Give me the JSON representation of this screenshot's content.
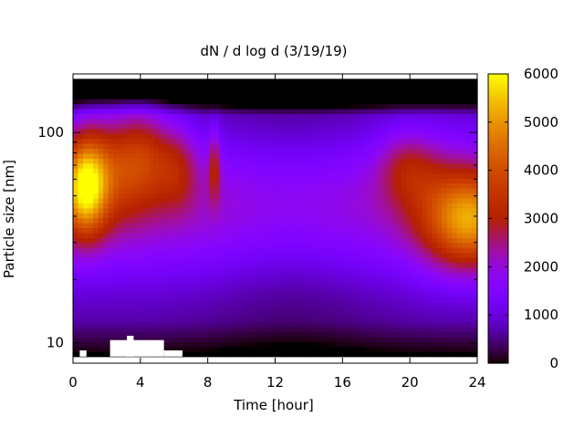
{
  "chart_data": {
    "type": "heatmap",
    "title": "dN / d log d (3/19/19)",
    "xlabel": "Time [hour]",
    "ylabel": "Particle size [nm]",
    "xlim": [
      0,
      24
    ],
    "xticks": [
      0,
      4,
      8,
      12,
      16,
      20,
      24
    ],
    "x_tick_labels": [
      "0",
      "4",
      "8",
      "12",
      "16",
      "20",
      "24"
    ],
    "ylim": [
      8.0,
      190
    ],
    "y_scale": "log",
    "yticks": [
      10,
      100
    ],
    "y_tick_labels": [
      "10",
      "100"
    ],
    "colorbar": {
      "range": [
        0,
        6000
      ],
      "ticks": [
        0,
        1000,
        2000,
        3000,
        4000,
        5000,
        6000
      ],
      "tick_labels": [
        "0",
        "1000",
        "2000",
        "3000",
        "4000",
        "5000",
        "6000"
      ],
      "palette": "black-purple-red-orange-yellow"
    },
    "data_extent": {
      "x": [
        0,
        24
      ],
      "y": [
        8.6,
        180
      ]
    },
    "features": [
      {
        "description": "morning peak",
        "x": 0.7,
        "y": 55,
        "value": 5200
      },
      {
        "description": "secondary maximum",
        "x": 4.2,
        "y": 80,
        "value": 3600
      },
      {
        "description": "narrow band",
        "x": 8.4,
        "y": 70,
        "value": 3300
      },
      {
        "description": "evening peak",
        "x": 23.7,
        "y": 38,
        "value": 4300
      }
    ],
    "missing_data_blocks": [
      {
        "x": [
          2.2,
          5.4
        ],
        "y": [
          8.6,
          10.3
        ]
      },
      {
        "x": [
          3.2,
          3.6
        ],
        "y": [
          8.6,
          10.8
        ]
      },
      {
        "x": [
          5.4,
          6.5
        ],
        "y": [
          8.6,
          9.2
        ]
      },
      {
        "x": [
          0.4,
          0.8
        ],
        "y": [
          8.6,
          9.2
        ]
      }
    ]
  }
}
